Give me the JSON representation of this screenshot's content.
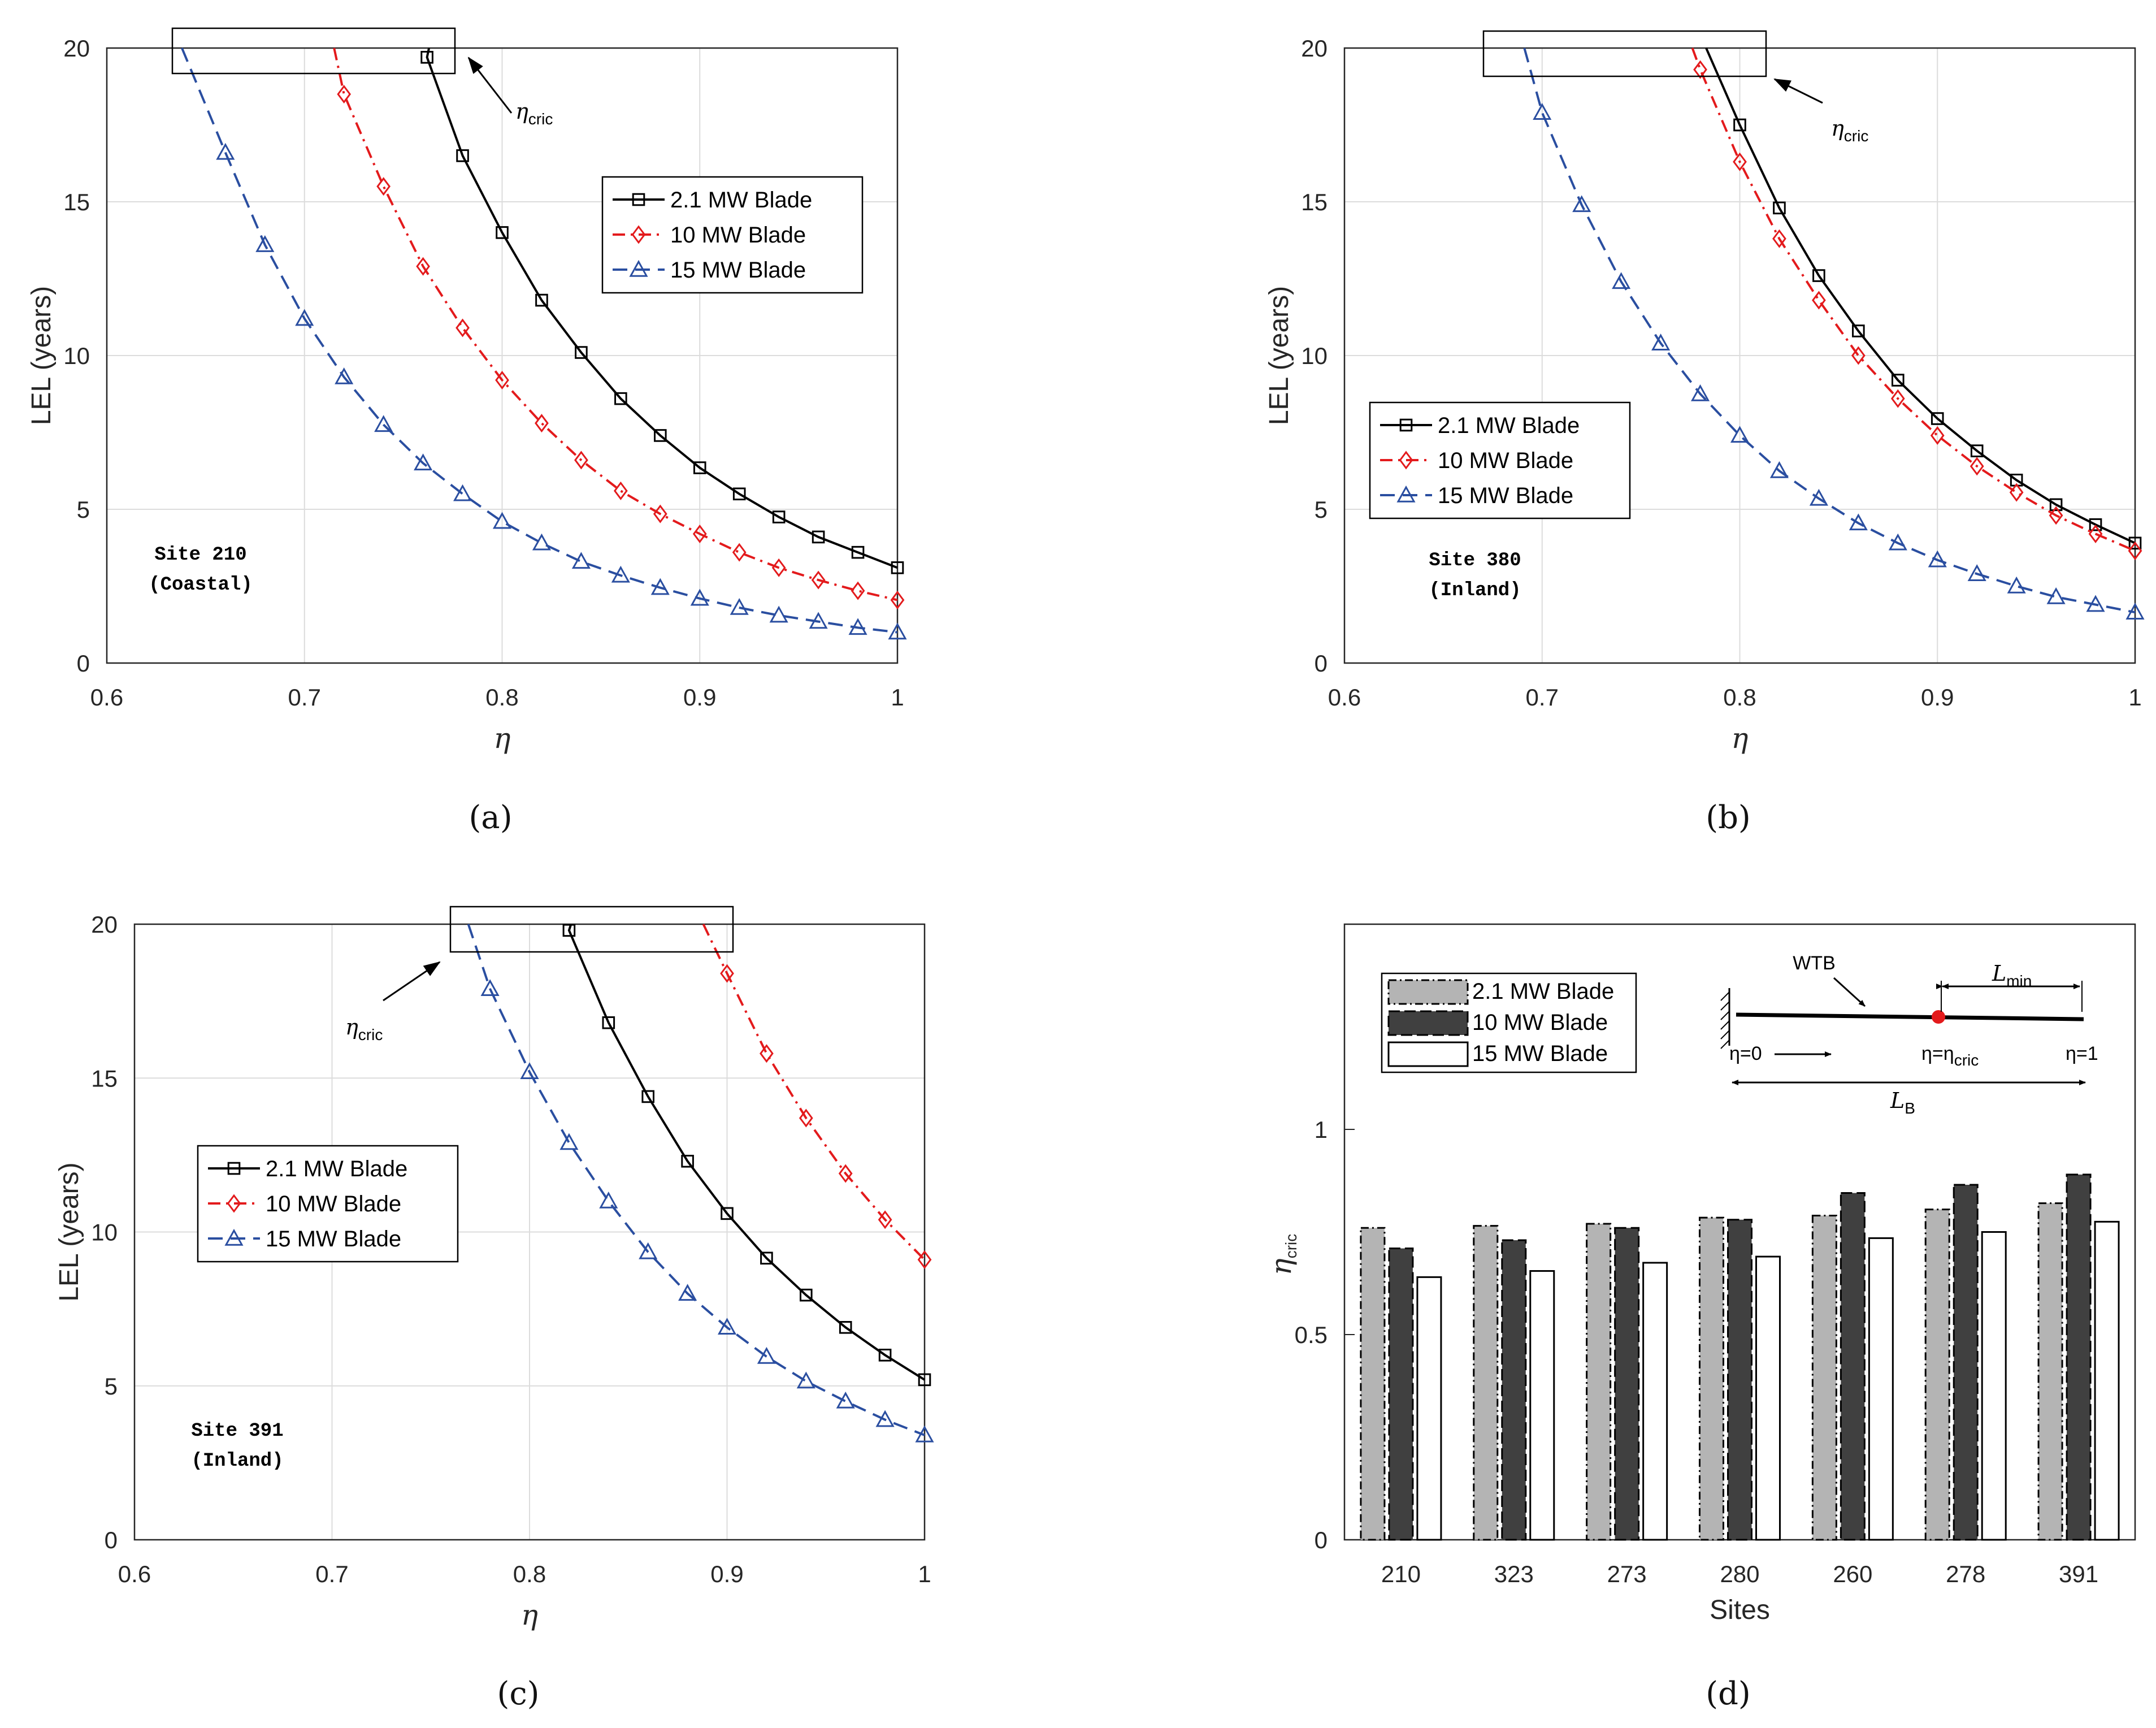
{
  "figure": {
    "captions": [
      "(a)",
      "(b)",
      "(c)",
      "(d)"
    ],
    "colors": {
      "black": "#000000",
      "red": "#e31a1c",
      "blue": "#2a4ea0",
      "grid": "#dcdcdc",
      "bar_light": "#b4b4b4",
      "bar_dark": "#404040"
    }
  },
  "chart_data": [
    {
      "panel": "a",
      "type": "line",
      "xlabel": "η",
      "ylabel": "LEL (years)",
      "xlim": [
        0.6,
        1
      ],
      "ylim": [
        0,
        20
      ],
      "xticks": [
        "0.6",
        "0.7",
        "0.8",
        "0.9",
        "1"
      ],
      "yticks": [
        "0",
        "5",
        "10",
        "15",
        "20"
      ],
      "site_text": [
        "Site 210",
        "(Coastal)"
      ],
      "annotation": {
        "base": "η",
        "sub": "cric"
      },
      "legend": [
        "2.1 MW Blade",
        "10 MW Blade",
        "15 MW Blade"
      ],
      "series": [
        {
          "name": "2.1 MW Blade",
          "x": [
            0.762,
            0.78,
            0.8,
            0.82,
            0.84,
            0.86,
            0.88,
            0.9,
            0.92,
            0.94,
            0.96,
            0.98,
            1.0
          ],
          "values": [
            19.7,
            16.5,
            14.0,
            11.8,
            10.1,
            8.6,
            7.4,
            6.35,
            5.5,
            4.75,
            4.1,
            3.6,
            3.1
          ]
        },
        {
          "name": "10 MW Blade",
          "x": [
            0.72,
            0.74,
            0.76,
            0.78,
            0.8,
            0.82,
            0.84,
            0.86,
            0.88,
            0.9,
            0.92,
            0.94,
            0.96,
            0.98,
            1.0
          ],
          "values": [
            18.5,
            15.5,
            12.9,
            10.9,
            9.2,
            7.8,
            6.6,
            5.6,
            4.85,
            4.2,
            3.6,
            3.1,
            2.7,
            2.35,
            2.05
          ]
        },
        {
          "name": "15 MW Blade",
          "x": [
            0.66,
            0.68,
            0.7,
            0.72,
            0.74,
            0.76,
            0.78,
            0.8,
            0.82,
            0.84,
            0.86,
            0.88,
            0.9,
            0.92,
            0.94,
            0.96,
            0.98,
            1.0
          ],
          "values": [
            16.6,
            13.6,
            11.2,
            9.3,
            7.75,
            6.5,
            5.5,
            4.6,
            3.9,
            3.3,
            2.85,
            2.45,
            2.1,
            1.8,
            1.55,
            1.35,
            1.15,
            1.0
          ]
        }
      ],
      "curve_start": [
        0.763,
        0.715,
        0.638
      ]
    },
    {
      "panel": "b",
      "type": "line",
      "xlabel": "η",
      "ylabel": "LEL (years)",
      "xlim": [
        0.6,
        1
      ],
      "ylim": [
        0,
        20
      ],
      "xticks": [
        "0.6",
        "0.7",
        "0.8",
        "0.9",
        "1"
      ],
      "yticks": [
        "0",
        "5",
        "10",
        "15",
        "20"
      ],
      "site_text": [
        "Site 380",
        "(Inland)"
      ],
      "annotation": {
        "base": "η",
        "sub": "cric"
      },
      "legend": [
        "2.1 MW Blade",
        "10 MW Blade",
        "15 MW Blade"
      ],
      "series": [
        {
          "name": "2.1 MW Blade",
          "x": [
            0.8,
            0.82,
            0.84,
            0.86,
            0.88,
            0.9,
            0.92,
            0.94,
            0.96,
            0.98,
            1.0
          ],
          "values": [
            17.5,
            14.8,
            12.6,
            10.8,
            9.2,
            7.95,
            6.9,
            5.95,
            5.15,
            4.5,
            3.9
          ]
        },
        {
          "name": "10 MW Blade",
          "x": [
            0.78,
            0.8,
            0.82,
            0.84,
            0.86,
            0.88,
            0.9,
            0.92,
            0.94,
            0.96,
            0.98,
            1.0
          ],
          "values": [
            19.3,
            16.3,
            13.8,
            11.8,
            10.0,
            8.6,
            7.4,
            6.4,
            5.55,
            4.8,
            4.2,
            3.65
          ]
        },
        {
          "name": "15 MW Blade",
          "x": [
            0.7,
            0.72,
            0.74,
            0.76,
            0.78,
            0.8,
            0.82,
            0.84,
            0.86,
            0.88,
            0.9,
            0.92,
            0.94,
            0.96,
            0.98,
            1.0
          ],
          "values": [
            17.9,
            14.9,
            12.4,
            10.4,
            8.75,
            7.4,
            6.25,
            5.35,
            4.55,
            3.9,
            3.35,
            2.9,
            2.5,
            2.15,
            1.9,
            1.65
          ]
        }
      ],
      "curve_start": [
        0.783,
        0.776,
        0.691
      ]
    },
    {
      "panel": "c",
      "type": "line",
      "xlabel": "η",
      "ylabel": "LEL (years)",
      "xlim": [
        0.6,
        1
      ],
      "ylim": [
        0,
        20
      ],
      "xticks": [
        "0.6",
        "0.7",
        "0.8",
        "0.9",
        "1"
      ],
      "yticks": [
        "0",
        "5",
        "10",
        "15",
        "20"
      ],
      "site_text": [
        "Site 391",
        "(Inland)"
      ],
      "annotation": {
        "base": "η",
        "sub": "cric"
      },
      "legend": [
        "2.1 MW Blade",
        "10 MW Blade",
        "15 MW Blade"
      ],
      "series": [
        {
          "name": "2.1 MW Blade",
          "x": [
            0.82,
            0.84,
            0.86,
            0.88,
            0.9,
            0.92,
            0.94,
            0.96,
            0.98,
            1.0
          ],
          "values": [
            19.8,
            16.8,
            14.4,
            12.3,
            10.6,
            9.15,
            7.95,
            6.9,
            6.0,
            5.2
          ]
        },
        {
          "name": "10 MW Blade",
          "x": [
            0.9,
            0.92,
            0.94,
            0.96,
            0.98,
            1.0
          ],
          "values": [
            18.4,
            15.8,
            13.7,
            11.9,
            10.4,
            9.1
          ]
        },
        {
          "name": "15 MW Blade",
          "x": [
            0.78,
            0.8,
            0.82,
            0.84,
            0.86,
            0.88,
            0.9,
            0.92,
            0.94,
            0.96,
            0.98,
            1.0
          ],
          "values": [
            17.9,
            15.2,
            12.9,
            11.0,
            9.35,
            8.0,
            6.9,
            5.95,
            5.15,
            4.5,
            3.9,
            3.4
          ]
        }
      ],
      "curve_start": [
        0.821,
        0.888,
        0.769
      ]
    },
    {
      "panel": "d",
      "type": "bar",
      "xlabel": "Sites",
      "ylabel": {
        "base": "η",
        "sub": "cric"
      },
      "ylim": [
        0,
        1.5
      ],
      "yticks": [
        "0",
        "0.5",
        "1"
      ],
      "categories": [
        "210",
        "323",
        "273",
        "280",
        "260",
        "278",
        "391"
      ],
      "legend": [
        "2.1 MW Blade",
        "10 MW Blade",
        "15 MW Blade"
      ],
      "series": [
        {
          "name": "2.1 MW Blade",
          "values": [
            0.76,
            0.765,
            0.77,
            0.785,
            0.79,
            0.805,
            0.82
          ]
        },
        {
          "name": "10 MW Blade",
          "values": [
            0.71,
            0.73,
            0.76,
            0.78,
            0.845,
            0.865,
            0.89
          ]
        },
        {
          "name": "15 MW Blade",
          "values": [
            0.64,
            0.655,
            0.675,
            0.69,
            0.735,
            0.75,
            0.775
          ]
        }
      ],
      "inset": {
        "title": "WTB",
        "lmin_base": "L",
        "lmin_sub": "min",
        "lb_base": "L",
        "lb_sub": "B",
        "eta0": "η=0",
        "eta_crit_base": "η=η",
        "eta_crit_sub": "cric",
        "eta1": "η=1"
      }
    }
  ]
}
